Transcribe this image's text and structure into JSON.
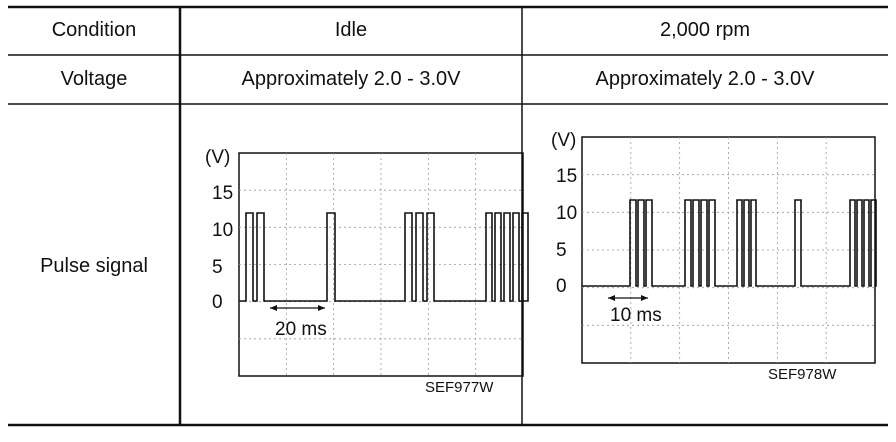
{
  "table": {
    "header": {
      "col_label": "Condition",
      "idle": "Idle",
      "rpm": "2,000 rpm"
    },
    "voltage_row": {
      "label": "Voltage",
      "idle": "Approximately 2.0 - 3.0V",
      "rpm": "Approximately 2.0 - 3.0V"
    },
    "pulse_row": {
      "label": "Pulse signal"
    }
  },
  "scopes": {
    "idle": {
      "unit_label": "(V)",
      "y_ticks": [
        "15",
        "10",
        "5",
        "0"
      ],
      "time_label": "20 ms",
      "code": "SEF977W"
    },
    "rpm": {
      "unit_label": "(V)",
      "y_ticks": [
        "15",
        "10",
        "5",
        "0"
      ],
      "time_label": "10 ms",
      "code": "SEF978W"
    }
  }
}
